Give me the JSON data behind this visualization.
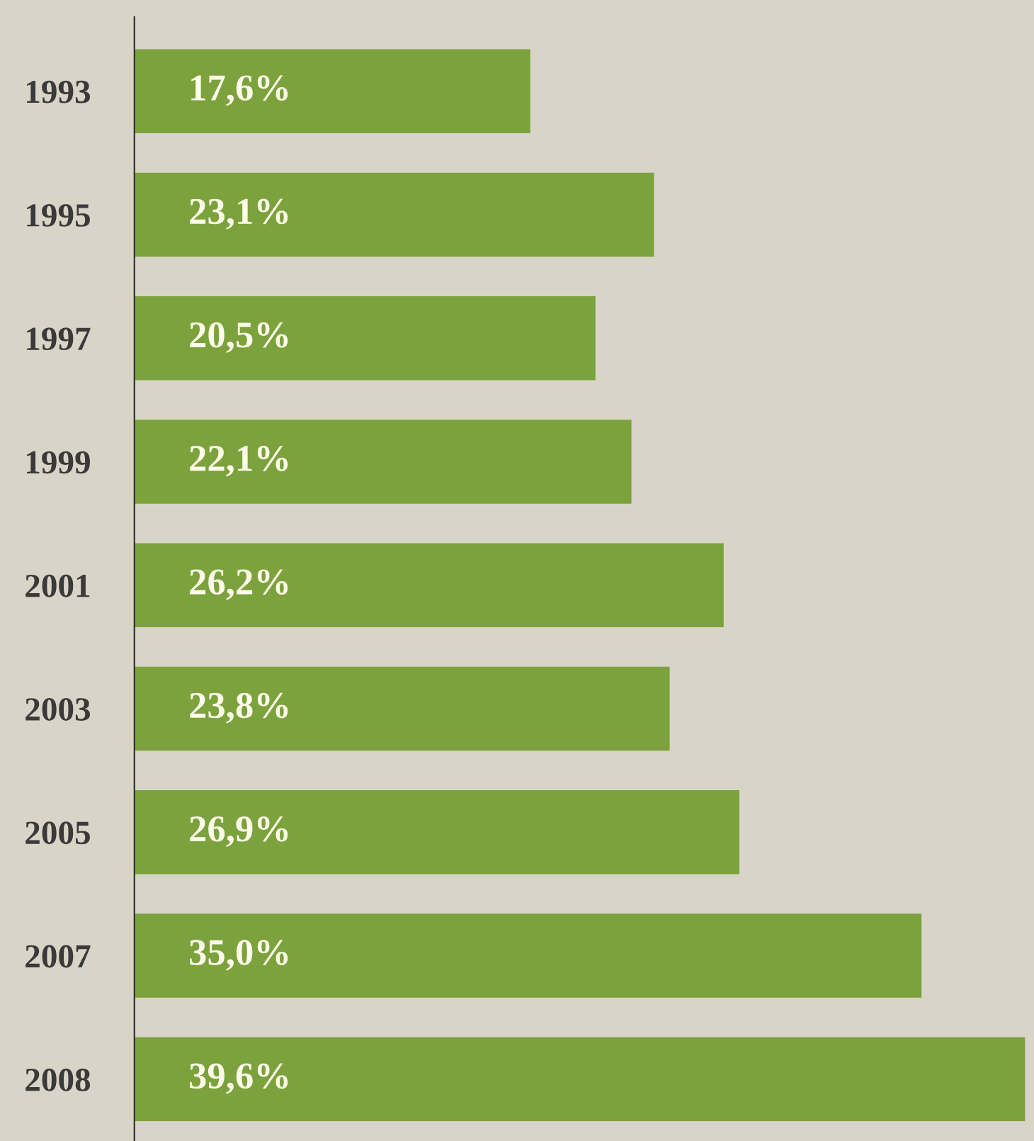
{
  "chart_data": {
    "type": "bar",
    "orientation": "horizontal",
    "categories": [
      "1993",
      "1995",
      "1997",
      "1999",
      "2001",
      "2003",
      "2005",
      "2007",
      "2008"
    ],
    "values": [
      17.6,
      23.1,
      20.5,
      22.1,
      26.2,
      23.8,
      26.9,
      35.0,
      39.6
    ],
    "value_labels": [
      "17,6%",
      "23,1%",
      "20,5%",
      "22,1%",
      "26,2%",
      "23,8%",
      "26,9%",
      "35,0%",
      "39,6%"
    ],
    "color": "#7ba23c",
    "xlim": [
      0,
      40
    ],
    "tick_labels": "y",
    "grid": false,
    "legend": false
  }
}
